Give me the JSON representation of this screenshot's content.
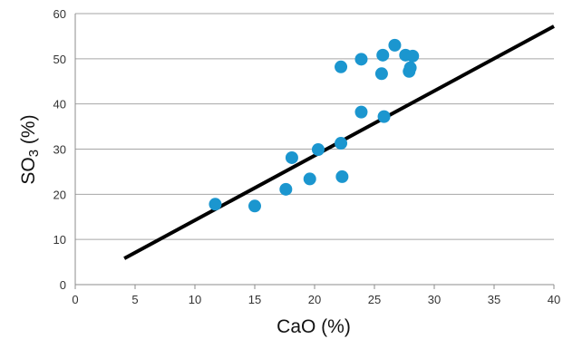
{
  "chart_data": {
    "type": "scatter",
    "title": "",
    "xlabel": "CaO (%)",
    "ylabel_main": "SO",
    "ylabel_sub": "3",
    "ylabel_unit": " (%)",
    "xlim": [
      0,
      40
    ],
    "ylim": [
      0,
      60
    ],
    "xticks": [
      0,
      5,
      10,
      15,
      20,
      25,
      30,
      35,
      40
    ],
    "yticks": [
      0,
      10,
      20,
      30,
      40,
      50,
      60
    ],
    "grid": "horizontal",
    "colors": {
      "points": "#1b96cf",
      "trendline": "#000000",
      "grid": "#a6a6a6"
    },
    "points": [
      {
        "x": 11.7,
        "y": 17.8
      },
      {
        "x": 15.0,
        "y": 17.4
      },
      {
        "x": 17.6,
        "y": 21.1
      },
      {
        "x": 18.1,
        "y": 28.1
      },
      {
        "x": 19.6,
        "y": 23.4
      },
      {
        "x": 20.3,
        "y": 29.9
      },
      {
        "x": 22.2,
        "y": 31.3
      },
      {
        "x": 22.3,
        "y": 23.9
      },
      {
        "x": 22.2,
        "y": 48.2
      },
      {
        "x": 23.9,
        "y": 49.9
      },
      {
        "x": 23.9,
        "y": 38.2
      },
      {
        "x": 25.6,
        "y": 46.7
      },
      {
        "x": 25.7,
        "y": 50.8
      },
      {
        "x": 25.8,
        "y": 37.2
      },
      {
        "x": 26.7,
        "y": 53.0
      },
      {
        "x": 27.6,
        "y": 50.8
      },
      {
        "x": 27.9,
        "y": 47.2
      },
      {
        "x": 28.0,
        "y": 48.0
      },
      {
        "x": 28.2,
        "y": 50.6
      }
    ],
    "trendline": {
      "x": [
        4.1,
        40.0
      ],
      "y": [
        5.8,
        57.2
      ]
    }
  }
}
